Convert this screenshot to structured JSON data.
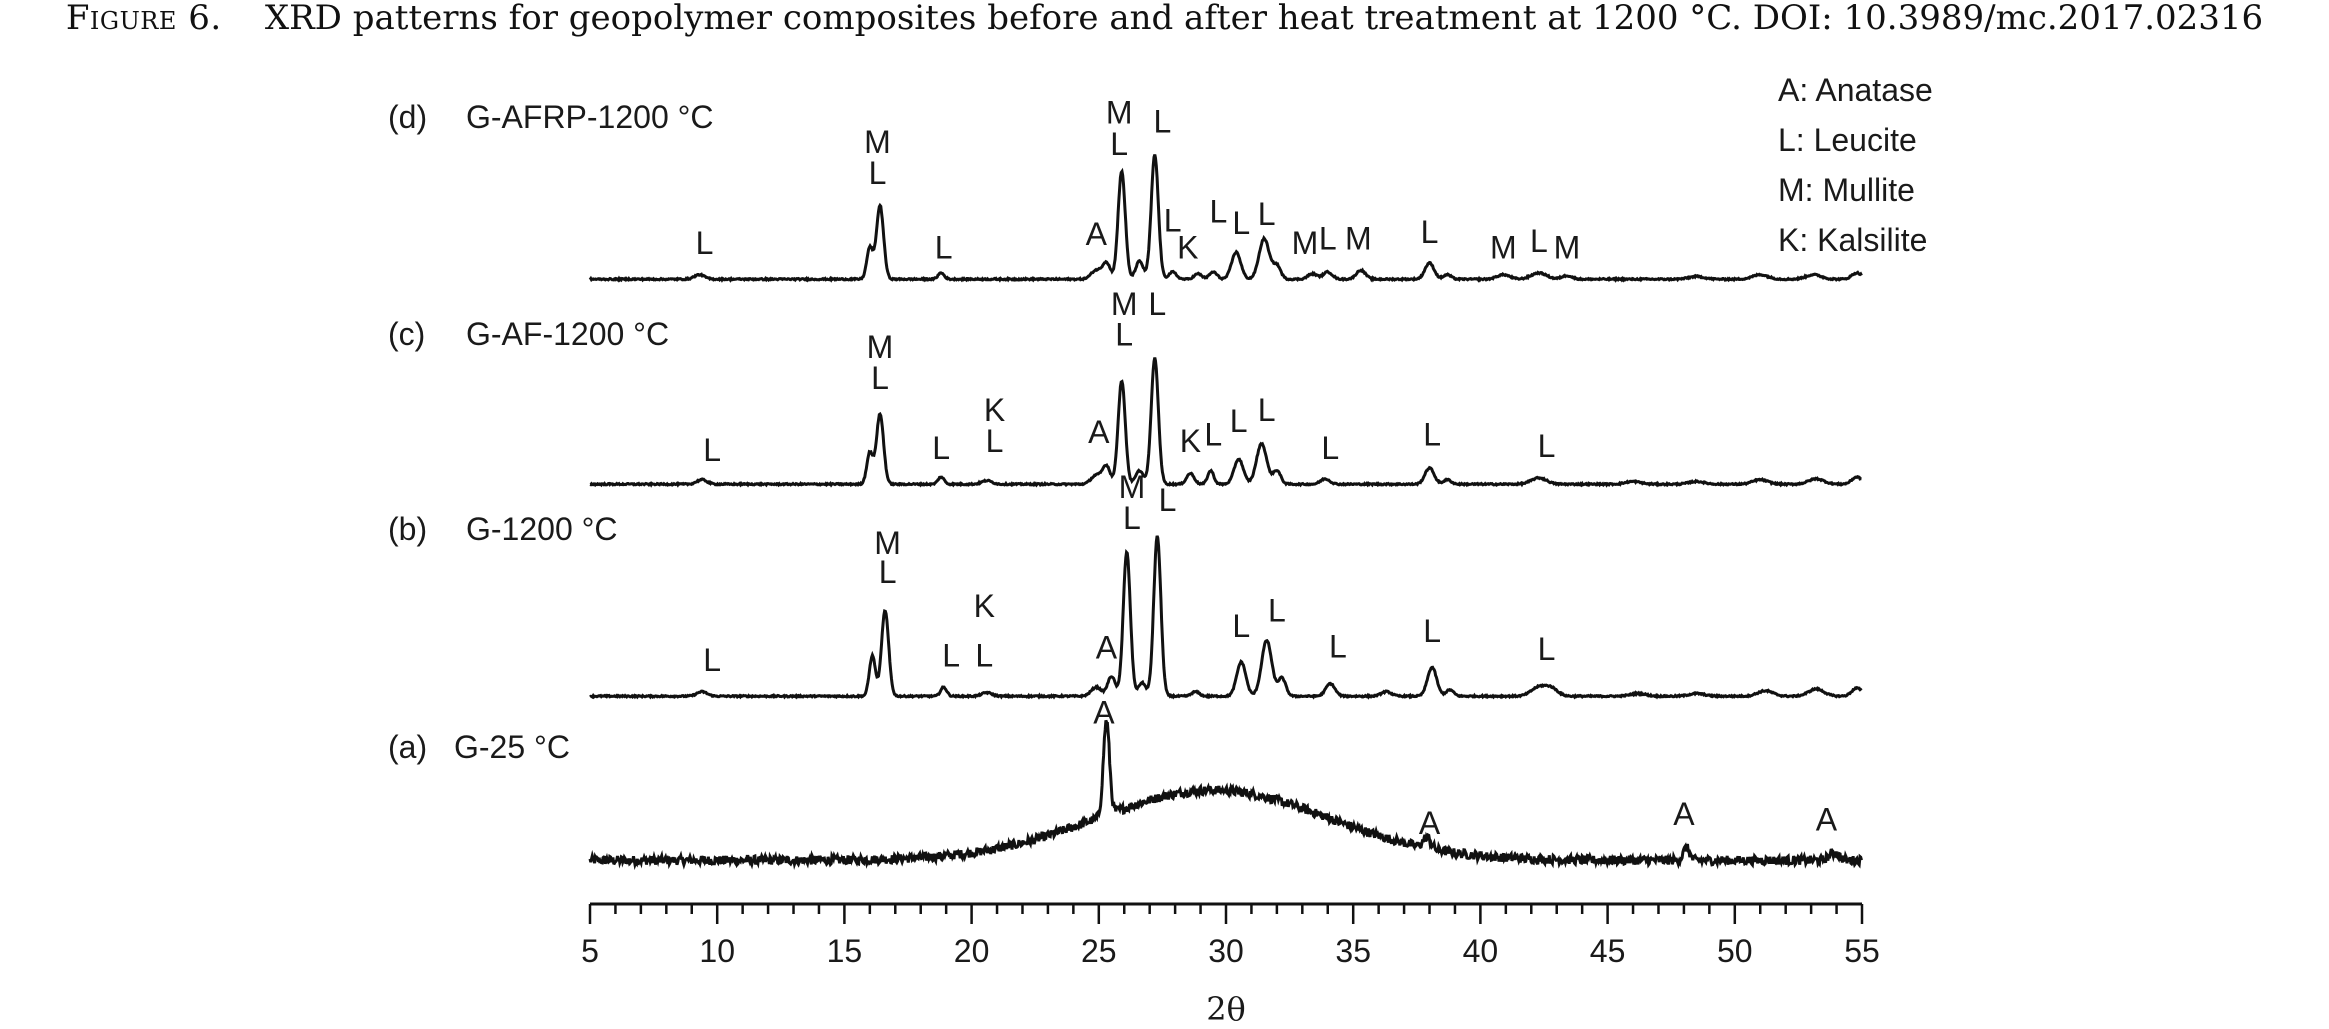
{
  "caption": {
    "figure_label": "Figure 6.",
    "text": "XRD patterns for geopolymer composites before and after heat treatment at 1200 °C. DOI: 10.3989/mc.2017.02316"
  },
  "chart_data": {
    "type": "line",
    "title": "",
    "xlabel": "2θ",
    "ylabel": "",
    "xlim": [
      5,
      55
    ],
    "xticks": [
      5,
      10,
      15,
      20,
      25,
      30,
      35,
      40,
      45,
      50,
      55
    ],
    "grid": false,
    "legend_position": "top-right",
    "legend": [
      "A: Anatase",
      "L: Leucite",
      "M: Mullite",
      "K: Kalsilite"
    ],
    "series": [
      {
        "tag": "(a)",
        "name": "G-25 °C",
        "baseline": 0.03,
        "hump": {
          "center": 29.5,
          "height": 0.78,
          "width": 4.5
        },
        "noise": 0.05,
        "peaks": [
          [
            25.3,
            1.05,
            0.12
          ],
          [
            37.9,
            0.12,
            0.15
          ],
          [
            48.1,
            0.14,
            0.12
          ],
          [
            53.9,
            0.08,
            0.2
          ]
        ],
        "annotations": [
          {
            "text": "A",
            "x": 25.2,
            "y": 1.55
          },
          {
            "text": "A",
            "x": 38.0,
            "y": 0.32
          },
          {
            "text": "A",
            "x": 48.0,
            "y": 0.42
          },
          {
            "text": "A",
            "x": 53.6,
            "y": 0.36
          }
        ]
      },
      {
        "tag": "(b)",
        "name": "G-1200 °C",
        "baseline": 0.02,
        "hump": {
          "center": 30.0,
          "height": 0.0,
          "width": 5
        },
        "noise": 0.008,
        "peaks": [
          [
            9.4,
            0.05,
            0.2
          ],
          [
            16.1,
            0.45,
            0.12
          ],
          [
            16.6,
            0.95,
            0.14
          ],
          [
            18.9,
            0.1,
            0.12
          ],
          [
            20.6,
            0.04,
            0.2
          ],
          [
            24.9,
            0.1,
            0.2
          ],
          [
            25.5,
            0.22,
            0.15
          ],
          [
            26.1,
            1.6,
            0.14
          ],
          [
            26.7,
            0.15,
            0.15
          ],
          [
            27.3,
            1.78,
            0.14
          ],
          [
            28.8,
            0.05,
            0.15
          ],
          [
            30.6,
            0.38,
            0.18
          ],
          [
            31.6,
            0.62,
            0.2
          ],
          [
            32.2,
            0.2,
            0.15
          ],
          [
            34.1,
            0.14,
            0.18
          ],
          [
            36.3,
            0.05,
            0.2
          ],
          [
            38.1,
            0.32,
            0.18
          ],
          [
            38.8,
            0.07,
            0.15
          ],
          [
            42.3,
            0.1,
            0.3
          ],
          [
            42.8,
            0.08,
            0.25
          ],
          [
            46.2,
            0.03,
            0.3
          ],
          [
            48.5,
            0.03,
            0.3
          ],
          [
            51.2,
            0.06,
            0.3
          ],
          [
            53.2,
            0.08,
            0.3
          ],
          [
            54.8,
            0.09,
            0.2
          ]
        ],
        "annotations": [
          {
            "text": "L",
            "x": 9.8,
            "y": 0.3
          },
          {
            "text": "M",
            "x": 16.7,
            "y": 1.6
          },
          {
            "text": "L",
            "x": 16.7,
            "y": 1.28
          },
          {
            "text": "L",
            "x": 19.2,
            "y": 0.35
          },
          {
            "text": "K",
            "x": 20.5,
            "y": 0.9
          },
          {
            "text": "L",
            "x": 20.5,
            "y": 0.35
          },
          {
            "text": "A",
            "x": 25.3,
            "y": 0.44
          },
          {
            "text": "M",
            "x": 26.3,
            "y": 2.22
          },
          {
            "text": "L",
            "x": 26.3,
            "y": 1.88
          },
          {
            "text": "L",
            "x": 27.7,
            "y": 2.08
          },
          {
            "text": "L",
            "x": 30.6,
            "y": 0.68
          },
          {
            "text": "L",
            "x": 32.0,
            "y": 0.85
          },
          {
            "text": "L",
            "x": 34.4,
            "y": 0.45
          },
          {
            "text": "L",
            "x": 38.1,
            "y": 0.62
          },
          {
            "text": "L",
            "x": 42.6,
            "y": 0.42
          }
        ]
      },
      {
        "tag": "(c)",
        "name": "G-AF-1200 °C",
        "baseline": 0.02,
        "hump": {
          "center": 30.0,
          "height": 0.0,
          "width": 5
        },
        "noise": 0.008,
        "peaks": [
          [
            9.4,
            0.05,
            0.2
          ],
          [
            16.0,
            0.35,
            0.12
          ],
          [
            16.4,
            0.78,
            0.14
          ],
          [
            18.8,
            0.08,
            0.12
          ],
          [
            20.6,
            0.04,
            0.2
          ],
          [
            24.9,
            0.1,
            0.2
          ],
          [
            25.3,
            0.2,
            0.15
          ],
          [
            25.9,
            1.15,
            0.14
          ],
          [
            26.6,
            0.15,
            0.15
          ],
          [
            27.2,
            1.4,
            0.14
          ],
          [
            28.6,
            0.12,
            0.15
          ],
          [
            29.4,
            0.15,
            0.12
          ],
          [
            30.5,
            0.28,
            0.18
          ],
          [
            31.4,
            0.45,
            0.2
          ],
          [
            32.0,
            0.15,
            0.15
          ],
          [
            33.9,
            0.06,
            0.18
          ],
          [
            38.0,
            0.18,
            0.18
          ],
          [
            38.7,
            0.05,
            0.15
          ],
          [
            42.3,
            0.07,
            0.3
          ],
          [
            46.0,
            0.03,
            0.3
          ],
          [
            48.5,
            0.03,
            0.3
          ],
          [
            51.0,
            0.05,
            0.3
          ],
          [
            53.2,
            0.06,
            0.3
          ],
          [
            54.8,
            0.08,
            0.2
          ]
        ],
        "annotations": [
          {
            "text": "L",
            "x": 9.8,
            "y": 0.28
          },
          {
            "text": "M",
            "x": 16.4,
            "y": 1.42
          },
          {
            "text": "L",
            "x": 16.4,
            "y": 1.08
          },
          {
            "text": "L",
            "x": 18.8,
            "y": 0.3
          },
          {
            "text": "K",
            "x": 20.9,
            "y": 0.72
          },
          {
            "text": "L",
            "x": 20.9,
            "y": 0.38
          },
          {
            "text": "A",
            "x": 25.0,
            "y": 0.48
          },
          {
            "text": "M",
            "x": 26.0,
            "y": 1.9
          },
          {
            "text": "L",
            "x": 26.0,
            "y": 1.56
          },
          {
            "text": "L",
            "x": 27.3,
            "y": 1.9
          },
          {
            "text": "K",
            "x": 28.6,
            "y": 0.38
          },
          {
            "text": "L",
            "x": 29.5,
            "y": 0.45
          },
          {
            "text": "L",
            "x": 30.5,
            "y": 0.6
          },
          {
            "text": "L",
            "x": 31.6,
            "y": 0.72
          },
          {
            "text": "L",
            "x": 34.1,
            "y": 0.3
          },
          {
            "text": "L",
            "x": 38.1,
            "y": 0.45
          },
          {
            "text": "L",
            "x": 42.6,
            "y": 0.32
          }
        ]
      },
      {
        "tag": "(d)",
        "name": "G-AFRP-1200 °C",
        "baseline": 0.02,
        "hump": {
          "center": 30.0,
          "height": 0.0,
          "width": 5
        },
        "noise": 0.008,
        "peaks": [
          [
            9.3,
            0.05,
            0.2
          ],
          [
            16.0,
            0.35,
            0.12
          ],
          [
            16.4,
            0.82,
            0.14
          ],
          [
            18.8,
            0.07,
            0.12
          ],
          [
            24.9,
            0.1,
            0.2
          ],
          [
            25.3,
            0.18,
            0.15
          ],
          [
            25.9,
            1.2,
            0.14
          ],
          [
            26.6,
            0.2,
            0.15
          ],
          [
            27.2,
            1.38,
            0.14
          ],
          [
            27.9,
            0.08,
            0.15
          ],
          [
            28.9,
            0.06,
            0.15
          ],
          [
            29.5,
            0.08,
            0.15
          ],
          [
            30.4,
            0.3,
            0.18
          ],
          [
            31.5,
            0.45,
            0.2
          ],
          [
            32.0,
            0.15,
            0.15
          ],
          [
            33.4,
            0.06,
            0.18
          ],
          [
            34.0,
            0.08,
            0.18
          ],
          [
            35.3,
            0.1,
            0.18
          ],
          [
            38.0,
            0.18,
            0.18
          ],
          [
            38.7,
            0.05,
            0.15
          ],
          [
            40.9,
            0.05,
            0.25
          ],
          [
            42.3,
            0.07,
            0.3
          ],
          [
            43.4,
            0.04,
            0.2
          ],
          [
            48.5,
            0.03,
            0.3
          ],
          [
            51.0,
            0.05,
            0.3
          ],
          [
            53.1,
            0.05,
            0.3
          ],
          [
            54.8,
            0.07,
            0.2
          ]
        ],
        "annotations": [
          {
            "text": "L",
            "x": 9.5,
            "y": 0.3
          },
          {
            "text": "M",
            "x": 16.3,
            "y": 1.42
          },
          {
            "text": "L",
            "x": 16.3,
            "y": 1.08
          },
          {
            "text": "L",
            "x": 18.9,
            "y": 0.25
          },
          {
            "text": "A",
            "x": 24.9,
            "y": 0.4
          },
          {
            "text": "M",
            "x": 25.8,
            "y": 1.75
          },
          {
            "text": "L",
            "x": 25.8,
            "y": 1.4
          },
          {
            "text": "L",
            "x": 27.5,
            "y": 1.65
          },
          {
            "text": "L",
            "x": 27.9,
            "y": 0.55
          },
          {
            "text": "K",
            "x": 28.5,
            "y": 0.25
          },
          {
            "text": "L",
            "x": 29.7,
            "y": 0.65
          },
          {
            "text": "L",
            "x": 30.6,
            "y": 0.52
          },
          {
            "text": "L",
            "x": 31.6,
            "y": 0.62
          },
          {
            "text": "M",
            "x": 33.1,
            "y": 0.3
          },
          {
            "text": "L",
            "x": 34.0,
            "y": 0.35
          },
          {
            "text": "M",
            "x": 35.2,
            "y": 0.35
          },
          {
            "text": "L",
            "x": 38.0,
            "y": 0.42
          },
          {
            "text": "M",
            "x": 40.9,
            "y": 0.25
          },
          {
            "text": "L",
            "x": 42.3,
            "y": 0.32
          },
          {
            "text": "M",
            "x": 43.4,
            "y": 0.25
          }
        ]
      }
    ]
  }
}
